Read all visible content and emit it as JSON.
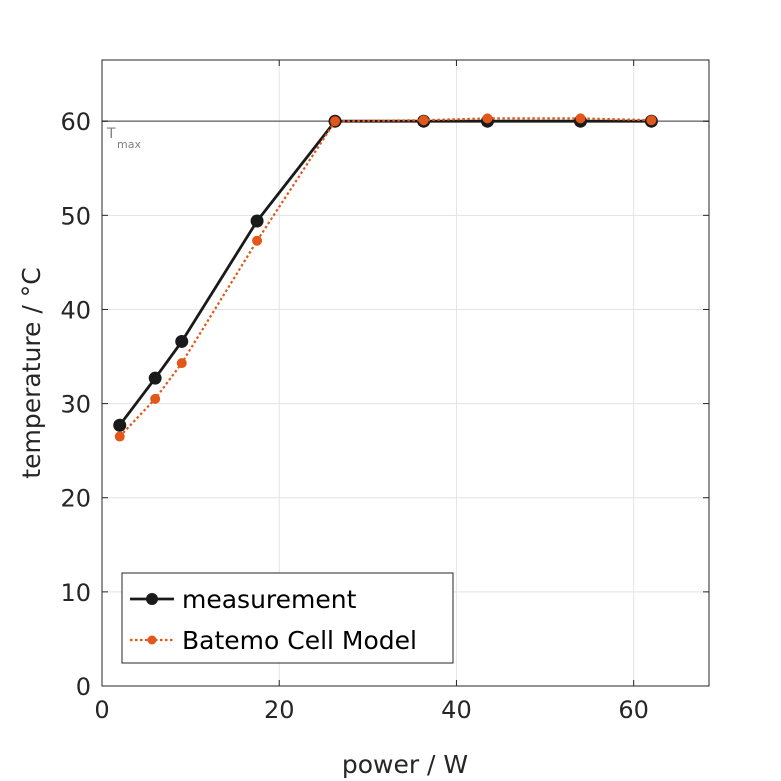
{
  "chart_data": {
    "type": "line",
    "xlabel": "power / W",
    "ylabel": "temperature / °C",
    "xlim": [
      0,
      68.5
    ],
    "ylim": [
      0,
      66.5
    ],
    "xticks": [
      0,
      20,
      40,
      60
    ],
    "yticks": [
      0,
      10,
      20,
      30,
      40,
      50,
      60
    ],
    "grid": true,
    "legend_position": "bottom-left",
    "reference_line": {
      "y": 60,
      "label_main": "T",
      "label_sub": "max",
      "color": "#808080"
    },
    "series": [
      {
        "name": "measurement",
        "color": "#1a1a1a",
        "style": "solid",
        "x": [
          2.0,
          6.0,
          9.0,
          17.5,
          26.3,
          36.3,
          43.5,
          54.0,
          62.0
        ],
        "y": [
          27.7,
          32.7,
          36.6,
          49.4,
          60.0,
          60.0,
          60.0,
          60.0,
          60.0
        ]
      },
      {
        "name": "Batemo Cell Model",
        "color": "#e2571a",
        "style": "dotted",
        "x": [
          2.0,
          6.0,
          9.0,
          17.5,
          26.3,
          36.3,
          43.5,
          54.0,
          62.0
        ],
        "y": [
          26.5,
          30.5,
          34.3,
          47.3,
          60.0,
          60.1,
          60.3,
          60.3,
          60.1
        ]
      }
    ]
  }
}
